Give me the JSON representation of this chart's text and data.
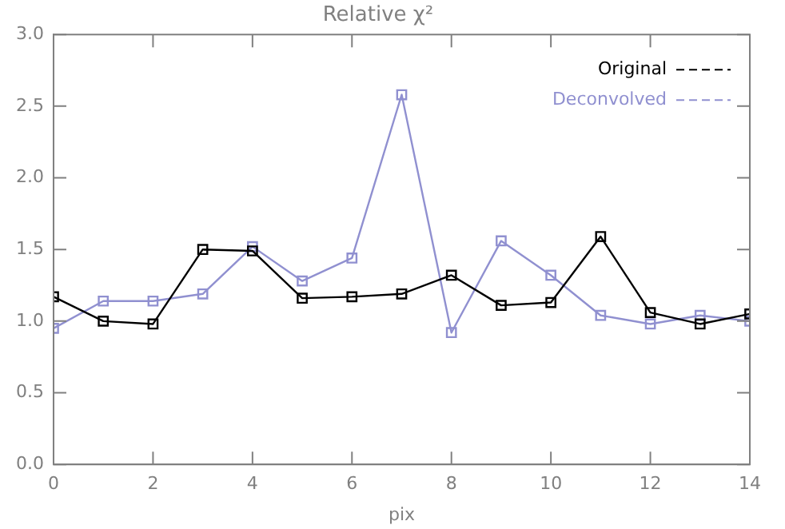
{
  "chart_data": {
    "type": "line",
    "title": "Relative χ²",
    "xlabel": "pix",
    "x": [
      0,
      1,
      2,
      3,
      4,
      5,
      6,
      7,
      8,
      9,
      10,
      11,
      12,
      13,
      14
    ],
    "series": [
      {
        "name": "Original",
        "color": "#000000",
        "values": [
          1.17,
          1.0,
          0.98,
          1.5,
          1.49,
          1.16,
          1.17,
          1.19,
          1.32,
          1.11,
          1.13,
          1.59,
          1.06,
          0.98,
          1.05
        ]
      },
      {
        "name": "Deconvolved",
        "color": "#9090d0",
        "values": [
          0.95,
          1.14,
          1.14,
          1.19,
          1.52,
          1.28,
          1.44,
          2.58,
          0.92,
          1.56,
          1.32,
          1.04,
          0.98,
          1.04,
          1.0
        ]
      }
    ],
    "xlim": [
      0,
      14
    ],
    "xticks": [
      0,
      2,
      4,
      6,
      8,
      10,
      12,
      14
    ],
    "ylim": [
      0,
      3
    ],
    "yticks": [
      {
        "value": 0,
        "label": "0.0"
      },
      {
        "value": 0.5,
        "label": "0.5"
      },
      {
        "value": 1,
        "label": "1.0"
      },
      {
        "value": 1.5,
        "label": "1.5"
      },
      {
        "value": 2,
        "label": "2.0"
      },
      {
        "value": 2.5,
        "label": "2.5"
      },
      {
        "value": 3,
        "label": "3.0"
      }
    ],
    "grid": false,
    "legend": "top right",
    "marker": "square",
    "line_style": "solid"
  }
}
